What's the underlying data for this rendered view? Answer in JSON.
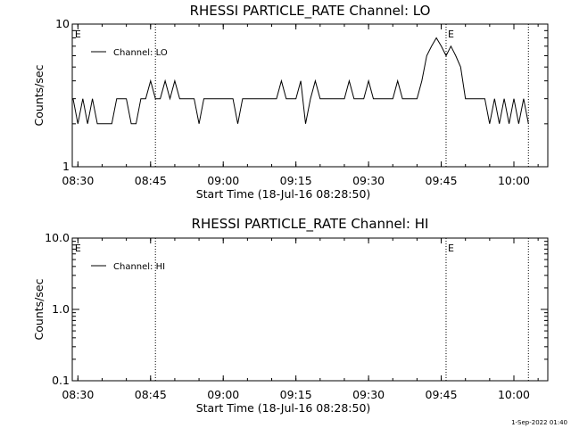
{
  "footer_timestamp": "1-Sep-2022 01:40",
  "chart_data": [
    {
      "type": "line",
      "title": "RHESSI PARTICLE_RATE Channel: LO",
      "xlabel": "Start Time (18-Jul-16 08:28:50)",
      "ylabel": "Counts/sec",
      "y_scale": "log",
      "xlim": [
        "08:28:50",
        "10:07:00"
      ],
      "ylim": [
        1,
        10
      ],
      "x_ticks": [
        "08:30",
        "08:45",
        "09:00",
        "09:15",
        "09:30",
        "09:45",
        "10:00"
      ],
      "y_ticks": [
        "1",
        "10"
      ],
      "legend": "top-left",
      "event_markers": [
        {
          "time": "08:29",
          "label": "E"
        },
        {
          "time": "09:46",
          "label": "E"
        }
      ],
      "dotted_lines": [
        "08:46",
        "09:46",
        "10:03"
      ],
      "series": [
        {
          "name": "Channel: LO",
          "x": [
            "08:29",
            "08:30",
            "08:31",
            "08:32",
            "08:33",
            "08:34",
            "08:35",
            "08:36",
            "08:37",
            "08:38",
            "08:39",
            "08:40",
            "08:41",
            "08:42",
            "08:43",
            "08:44",
            "08:45",
            "08:46",
            "08:47",
            "08:48",
            "08:49",
            "08:50",
            "08:51",
            "08:52",
            "08:53",
            "08:54",
            "08:55",
            "08:56",
            "08:57",
            "08:58",
            "08:59",
            "09:00",
            "09:01",
            "09:02",
            "09:03",
            "09:04",
            "09:05",
            "09:06",
            "09:07",
            "09:08",
            "09:09",
            "09:10",
            "09:11",
            "09:12",
            "09:13",
            "09:14",
            "09:15",
            "09:16",
            "09:17",
            "09:18",
            "09:19",
            "09:20",
            "09:21",
            "09:22",
            "09:23",
            "09:24",
            "09:25",
            "09:26",
            "09:27",
            "09:28",
            "09:29",
            "09:30",
            "09:31",
            "09:32",
            "09:33",
            "09:34",
            "09:35",
            "09:36",
            "09:37",
            "09:38",
            "09:39",
            "09:40",
            "09:41",
            "09:42",
            "09:43",
            "09:44",
            "09:45",
            "09:46",
            "09:47",
            "09:48",
            "09:49",
            "09:50",
            "09:51",
            "09:52",
            "09:53",
            "09:54",
            "09:55",
            "09:56",
            "09:57",
            "09:58",
            "09:59",
            "10:00",
            "10:01",
            "10:02",
            "10:03"
          ],
          "y": [
            3,
            2,
            3,
            2,
            3,
            2,
            2,
            2,
            2,
            3,
            3,
            3,
            2,
            2,
            3,
            3,
            4,
            3,
            3,
            4,
            3,
            4,
            3,
            3,
            3,
            3,
            2,
            3,
            3,
            3,
            3,
            3,
            3,
            3,
            2,
            3,
            3,
            3,
            3,
            3,
            3,
            3,
            3,
            4,
            3,
            3,
            3,
            4,
            2,
            3,
            4,
            3,
            3,
            3,
            3,
            3,
            3,
            4,
            3,
            3,
            3,
            4,
            3,
            3,
            3,
            3,
            3,
            4,
            3,
            3,
            3,
            3,
            4,
            6,
            7,
            8,
            7,
            6,
            7,
            6,
            5,
            3,
            3,
            3,
            3,
            3,
            2,
            3,
            2,
            3,
            2,
            3,
            2,
            3,
            2
          ]
        }
      ]
    },
    {
      "type": "line",
      "title": "RHESSI PARTICLE_RATE Channel: HI",
      "xlabel": "Start Time (18-Jul-16 08:28:50)",
      "ylabel": "Counts/sec",
      "y_scale": "log",
      "xlim": [
        "08:28:50",
        "10:07:00"
      ],
      "ylim": [
        0.1,
        10
      ],
      "x_ticks": [
        "08:30",
        "08:45",
        "09:00",
        "09:15",
        "09:30",
        "09:45",
        "10:00"
      ],
      "y_ticks": [
        "0.1",
        "1.0",
        "10.0"
      ],
      "legend": "top-left",
      "event_markers": [
        {
          "time": "08:29",
          "label": "E"
        },
        {
          "time": "09:46",
          "label": "E"
        }
      ],
      "dotted_lines": [
        "08:46",
        "09:46",
        "10:03"
      ],
      "series": [
        {
          "name": "Channel: HI",
          "x": [],
          "y": []
        }
      ]
    }
  ]
}
